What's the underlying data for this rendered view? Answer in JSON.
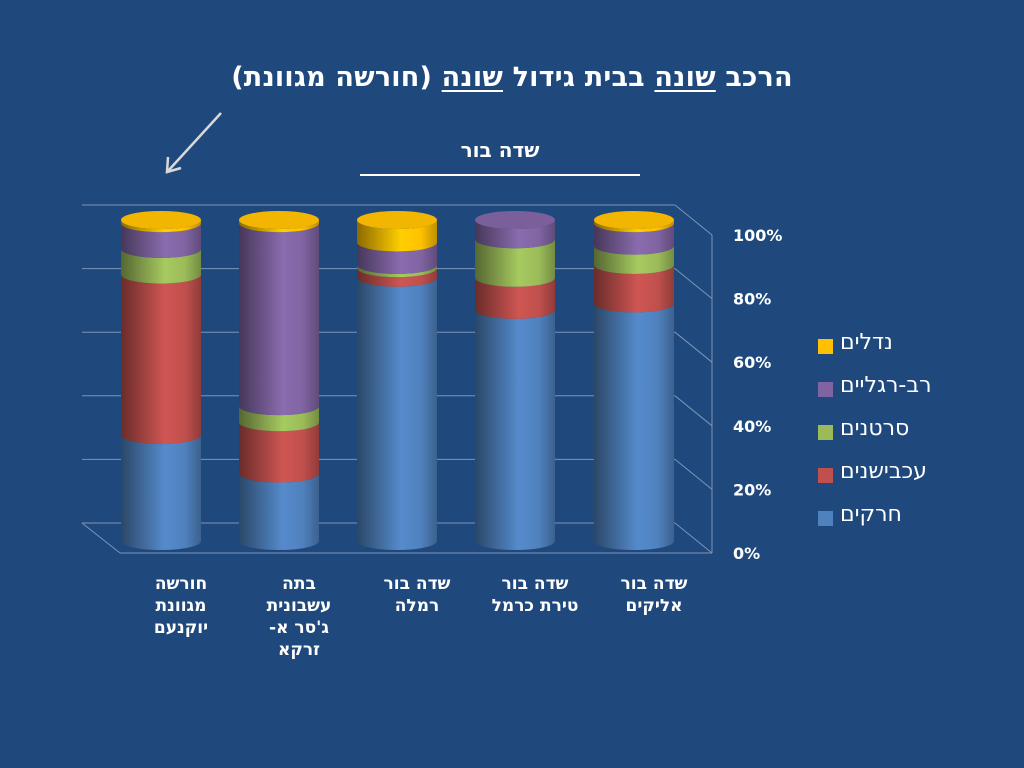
{
  "title": {
    "before1": "הרכב ",
    "u1": "שונה",
    "mid": " בבית גידול ",
    "u2": "שונה",
    "after": " (חורשה מגוונת)"
  },
  "subtitle": "שדה בור",
  "colors": {
    "background": "#1f497d",
    "series": [
      "#4f81bd",
      "#c0504d",
      "#9bbb59",
      "#8064a2",
      "#ffc000"
    ]
  },
  "chart_data": {
    "type": "bar",
    "stacked": true,
    "percent": true,
    "categories": [
      "חורשה מגוונת יוקנעם",
      "בתה עשבונית ג'סר א-זרקא",
      "שדה בור רמלה",
      "שדה בור טירת כרמל",
      "שדה בור אליקים"
    ],
    "category_lines": [
      [
        "חורשה",
        "מגוונת",
        "יוקנעם"
      ],
      [
        "בתה",
        "עשבונית",
        "ג'סר א-",
        "זרקא"
      ],
      [
        "שדה בור",
        "רמלה"
      ],
      [
        "שדה בור",
        "טירת כרמל"
      ],
      [
        "שדה בור",
        "אליקים"
      ]
    ],
    "series": [
      {
        "name": "חרקים",
        "color": "#4f81bd",
        "values": [
          33,
          21,
          82,
          72,
          74
        ]
      },
      {
        "name": "עכבישנים",
        "color": "#c0504d",
        "values": [
          50,
          16,
          3,
          10,
          12
        ]
      },
      {
        "name": "סרטנים",
        "color": "#9bbb59",
        "values": [
          8,
          5,
          1,
          12,
          6
        ]
      },
      {
        "name": "רב-רגליים",
        "color": "#8064a2",
        "values": [
          8,
          57,
          7,
          6,
          7
        ]
      },
      {
        "name": "נדלים",
        "color": "#ffc000",
        "values": [
          1,
          1,
          7,
          0,
          1
        ]
      }
    ],
    "yticks": [
      "0%",
      "20%",
      "40%",
      "60%",
      "80%",
      "100%"
    ],
    "ylim": [
      0,
      100
    ],
    "grid": true,
    "legend_position": "right"
  }
}
